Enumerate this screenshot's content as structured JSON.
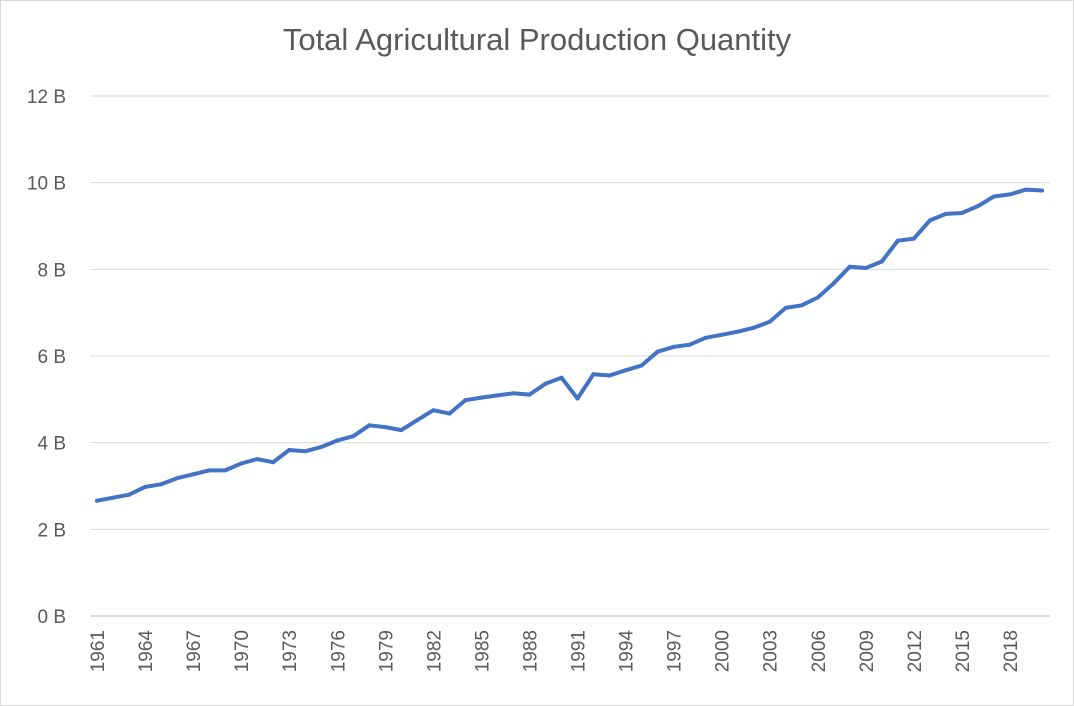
{
  "chart_data": {
    "type": "line",
    "title": "Total Agricultural Production Quantity",
    "xlabel": "",
    "ylabel": "",
    "ylim": [
      0,
      12
    ],
    "y_ticks": [
      0,
      2,
      4,
      6,
      8,
      10,
      12
    ],
    "y_tick_labels": [
      "0 B",
      "2 B",
      "4 B",
      "6 B",
      "8 B",
      "10 B",
      "12 B"
    ],
    "y_unit": "billion",
    "grid": true,
    "legend": "none",
    "series_color": "#4472C4",
    "x_tick_labels": [
      "1961",
      "1964",
      "1967",
      "1970",
      "1973",
      "1976",
      "1979",
      "1982",
      "1985",
      "1988",
      "1991",
      "1994",
      "1997",
      "2000",
      "2003",
      "2006",
      "2009",
      "2012",
      "2015",
      "2018"
    ],
    "series": [
      {
        "name": "Total Agricultural Production Quantity",
        "x": [
          1961,
          1962,
          1963,
          1964,
          1965,
          1966,
          1967,
          1968,
          1969,
          1970,
          1971,
          1972,
          1973,
          1974,
          1975,
          1976,
          1977,
          1978,
          1979,
          1980,
          1981,
          1982,
          1983,
          1984,
          1985,
          1986,
          1987,
          1988,
          1989,
          1990,
          1991,
          1992,
          1993,
          1994,
          1995,
          1996,
          1997,
          1998,
          1999,
          2000,
          2001,
          2002,
          2003,
          2004,
          2005,
          2006,
          2007,
          2008,
          2009,
          2010,
          2011,
          2012,
          2013,
          2014,
          2015,
          2016,
          2017,
          2018,
          2019,
          2020
        ],
        "values": [
          2.66,
          2.73,
          2.8,
          2.98,
          3.04,
          3.18,
          3.27,
          3.36,
          3.36,
          3.52,
          3.62,
          3.55,
          3.83,
          3.8,
          3.9,
          4.05,
          4.15,
          4.4,
          4.36,
          4.29,
          4.52,
          4.75,
          4.67,
          4.98,
          5.04,
          5.09,
          5.14,
          5.11,
          5.36,
          5.5,
          5.02,
          5.58,
          5.55,
          5.67,
          5.78,
          6.1,
          6.21,
          6.26,
          6.42,
          6.49,
          6.56,
          6.65,
          6.79,
          7.11,
          7.17,
          7.35,
          7.68,
          8.06,
          8.03,
          8.18,
          8.66,
          8.71,
          9.13,
          9.28,
          9.3,
          9.46,
          9.68,
          9.73,
          9.84,
          9.82
        ]
      }
    ]
  }
}
